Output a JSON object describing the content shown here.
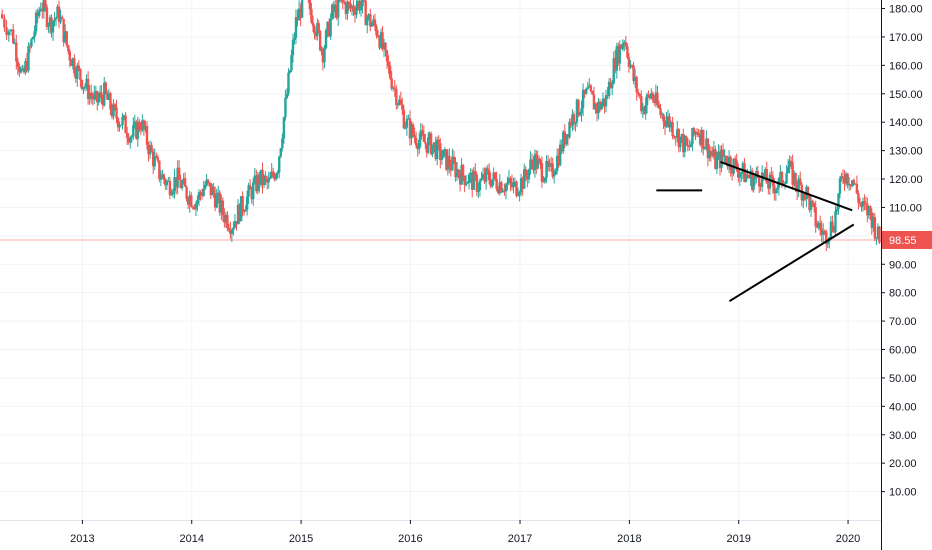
{
  "chart_data": {
    "type": "candlestick",
    "title": "",
    "xlabel": "",
    "ylabel": "",
    "x_ticks": [
      "2013",
      "2014",
      "2015",
      "2016",
      "2017",
      "2018",
      "2019",
      "2020"
    ],
    "y_ticks": [
      "180.00",
      "170.00",
      "160.00",
      "150.00",
      "140.00",
      "130.00",
      "120.00",
      "110.00",
      "100.00",
      "90.00",
      "80.00",
      "70.00",
      "60.00",
      "50.00",
      "40.00",
      "30.00",
      "20.00",
      "10.00"
    ],
    "ylim": [
      0,
      183
    ],
    "xlim": [
      "2012-04-01",
      "2020-04-20"
    ],
    "grid": true,
    "last_price": {
      "label": "98.55",
      "value": 98.55
    },
    "colors": {
      "up": "#26a69a",
      "down": "#ef5350",
      "trendline": "#000000",
      "grid": "#f0f3fa",
      "axis_text": "#131722",
      "price_line": "#ef5350"
    },
    "series": [
      {
        "name": "",
        "type": "close_path",
        "points": [
          [
            "2012-04-01",
            178
          ],
          [
            "2012-05-15",
            170
          ],
          [
            "2012-06-15",
            155
          ],
          [
            "2012-07-15",
            168
          ],
          [
            "2012-08-15",
            182
          ],
          [
            "2012-09-15",
            175
          ],
          [
            "2012-10-15",
            178
          ],
          [
            "2012-11-15",
            165
          ],
          [
            "2012-12-15",
            158
          ],
          [
            "2013-01-15",
            152
          ],
          [
            "2013-02-15",
            147
          ],
          [
            "2013-03-15",
            150
          ],
          [
            "2013-04-15",
            143
          ],
          [
            "2013-05-15",
            140
          ],
          [
            "2013-06-15",
            135
          ],
          [
            "2013-07-15",
            140
          ],
          [
            "2013-08-15",
            130
          ],
          [
            "2013-09-15",
            122
          ],
          [
            "2013-10-15",
            118
          ],
          [
            "2013-11-15",
            120
          ],
          [
            "2013-12-15",
            115
          ],
          [
            "2014-01-15",
            112
          ],
          [
            "2014-02-15",
            118
          ],
          [
            "2014-03-15",
            115
          ],
          [
            "2014-04-15",
            108
          ],
          [
            "2014-05-15",
            104
          ],
          [
            "2014-06-15",
            110
          ],
          [
            "2014-07-15",
            115
          ],
          [
            "2014-08-15",
            120
          ],
          [
            "2014-09-15",
            118
          ],
          [
            "2014-10-15",
            125
          ],
          [
            "2014-11-15",
            150
          ],
          [
            "2014-12-15",
            175
          ],
          [
            "2015-01-15",
            185
          ],
          [
            "2015-02-15",
            175
          ],
          [
            "2015-03-15",
            165
          ],
          [
            "2015-04-15",
            178
          ],
          [
            "2015-05-15",
            182
          ],
          [
            "2015-06-15",
            180
          ],
          [
            "2015-07-15",
            182
          ],
          [
            "2015-08-15",
            176
          ],
          [
            "2015-09-15",
            172
          ],
          [
            "2015-10-15",
            160
          ],
          [
            "2015-11-15",
            150
          ],
          [
            "2015-12-15",
            140
          ],
          [
            "2016-01-15",
            135
          ],
          [
            "2016-02-15",
            133
          ],
          [
            "2016-03-15",
            132
          ],
          [
            "2016-04-15",
            128
          ],
          [
            "2016-05-15",
            125
          ],
          [
            "2016-06-15",
            122
          ],
          [
            "2016-07-15",
            120
          ],
          [
            "2016-08-15",
            118
          ],
          [
            "2016-09-15",
            121
          ],
          [
            "2016-10-15",
            119
          ],
          [
            "2016-11-15",
            118
          ],
          [
            "2016-12-15",
            117
          ],
          [
            "2017-01-15",
            120
          ],
          [
            "2017-02-15",
            127
          ],
          [
            "2017-03-15",
            123
          ],
          [
            "2017-04-15",
            122
          ],
          [
            "2017-05-15",
            130
          ],
          [
            "2017-06-15",
            140
          ],
          [
            "2017-07-15",
            145
          ],
          [
            "2017-08-15",
            150
          ],
          [
            "2017-09-15",
            145
          ],
          [
            "2017-10-15",
            148
          ],
          [
            "2017-11-15",
            162
          ],
          [
            "2017-12-15",
            170
          ],
          [
            "2018-01-15",
            155
          ],
          [
            "2018-02-15",
            145
          ],
          [
            "2018-03-15",
            150
          ],
          [
            "2018-04-15",
            143
          ],
          [
            "2018-05-15",
            140
          ],
          [
            "2018-06-15",
            135
          ],
          [
            "2018-07-15",
            130
          ],
          [
            "2018-08-15",
            138
          ],
          [
            "2018-09-15",
            132
          ],
          [
            "2018-10-15",
            126
          ],
          [
            "2018-11-15",
            128
          ],
          [
            "2018-12-15",
            125
          ],
          [
            "2019-01-15",
            122
          ],
          [
            "2019-02-15",
            120
          ],
          [
            "2019-03-15",
            121
          ],
          [
            "2019-04-15",
            118
          ],
          [
            "2019-05-15",
            118
          ],
          [
            "2019-06-15",
            124
          ],
          [
            "2019-07-15",
            118
          ],
          [
            "2019-08-15",
            115
          ],
          [
            "2019-09-15",
            105
          ],
          [
            "2019-10-15",
            100
          ],
          [
            "2019-11-15",
            105
          ],
          [
            "2019-12-15",
            122
          ],
          [
            "2020-01-15",
            120
          ],
          [
            "2020-02-15",
            110
          ],
          [
            "2020-03-15",
            108
          ],
          [
            "2020-04-15",
            98
          ]
        ]
      }
    ],
    "annotations": [
      {
        "type": "trendline",
        "name": "upper-triangle-line",
        "points": [
          [
            "2018-11-01",
            126
          ],
          [
            "2020-01-15",
            109
          ]
        ]
      },
      {
        "type": "trendline",
        "name": "lower-triangle-line",
        "points": [
          [
            "2018-12-01",
            77
          ],
          [
            "2020-01-20",
            104
          ]
        ]
      },
      {
        "type": "trendline",
        "name": "horizontal-support-line",
        "points": [
          [
            "2018-04-01",
            116
          ],
          [
            "2018-09-01",
            116
          ]
        ]
      }
    ]
  }
}
